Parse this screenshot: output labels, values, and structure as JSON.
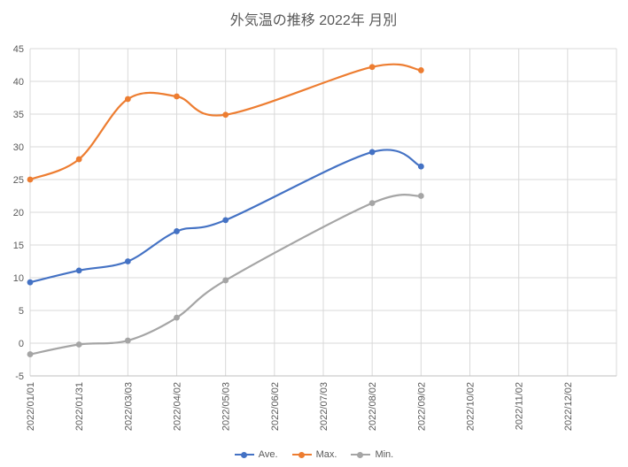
{
  "chart_data": {
    "type": "line",
    "title": "外気温の推移 2022年 月別",
    "xlabel": "",
    "ylabel": "",
    "ylim": [
      -5,
      45
    ],
    "y_tick_step": 5,
    "grid": true,
    "smooth_lines": true,
    "legend_position": "bottom",
    "x_ticks": [
      "2022/01/01",
      "2022/01/31",
      "2022/03/03",
      "2022/04/02",
      "2022/05/03",
      "2022/06/02",
      "2022/07/03",
      "2022/08/02",
      "2022/09/02",
      "2022/10/02",
      "2022/11/02",
      "2022/12/02"
    ],
    "x_data_dates": [
      "2022/01/01",
      "2022/01/31",
      "2022/03/03",
      "2022/04/02",
      "2022/05/03",
      "2022/08/02",
      "2022/09/02"
    ],
    "x_data_tick_indices": [
      0,
      1,
      2,
      3,
      4,
      7,
      8
    ],
    "series": [
      {
        "name": "Ave.",
        "color": "#4472C4",
        "values": [
          9.3,
          11.1,
          12.5,
          17.1,
          18.8,
          29.2,
          27.0
        ]
      },
      {
        "name": "Max.",
        "color": "#ED7D31",
        "values": [
          25.0,
          28.1,
          37.3,
          37.7,
          34.9,
          42.2,
          41.7
        ]
      },
      {
        "name": "Min.",
        "color": "#A5A5A5",
        "values": [
          -1.7,
          -0.2,
          0.4,
          3.9,
          9.6,
          21.4,
          22.5
        ]
      }
    ],
    "colors": {
      "grid": "#D9D9D9",
      "axis": "#BFBFBF",
      "text": "#595959",
      "background": "#FFFFFF"
    }
  }
}
